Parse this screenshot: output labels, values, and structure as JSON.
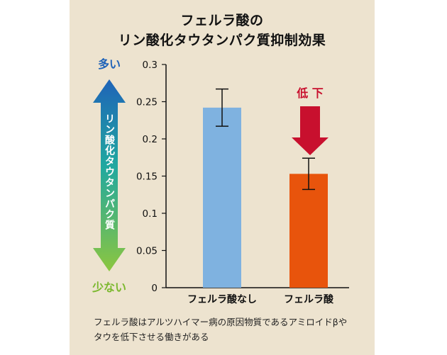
{
  "title": {
    "line1": "フェルラ酸の",
    "line2": "リン酸化タウタンパク質抑制効果"
  },
  "scale_indicator": {
    "top_label": "多い",
    "bottom_label": "少ない",
    "axis_text": "リン酸化タウタンパク質",
    "top_color": "#1f63b8",
    "bottom_color": "#8cc63f"
  },
  "decrease_annotation": {
    "label": "低 下",
    "color": "#c8102e"
  },
  "note": {
    "line1": "フェルラ酸はアルツハイマー病の原因物質であるアミロイドβや",
    "line2": "タウを低下させる働きがある"
  },
  "chart_data": {
    "type": "bar",
    "categories": [
      "フェルラ酸なし",
      "フェルラ酸"
    ],
    "values": [
      0.242,
      0.153
    ],
    "error": [
      0.025,
      0.021
    ],
    "colors": [
      "#7fb2e0",
      "#e8540c"
    ],
    "ylim": [
      0,
      0.3
    ],
    "yticks": [
      0,
      0.05,
      0.1,
      0.15,
      0.2,
      0.25,
      0.3
    ],
    "ytick_labels": [
      "0",
      "0.05",
      "0.1",
      "0.15",
      "0.2",
      "0.25",
      "0.3"
    ],
    "xlabel": "",
    "ylabel": ""
  }
}
